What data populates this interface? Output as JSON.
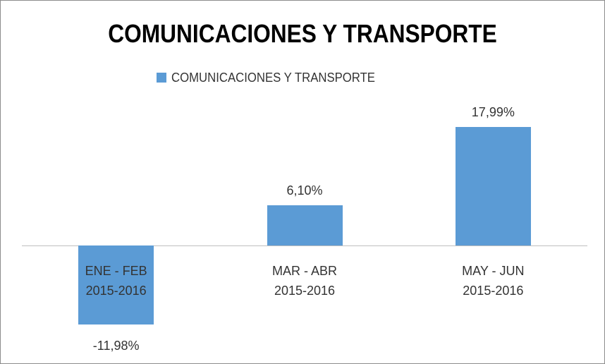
{
  "chart_data": {
    "type": "bar",
    "title": "COMUNICACIONES Y TRANSPORTE",
    "categories": [
      "ENE - FEB\n2015-2016",
      "MAR - ABR\n2015-2016",
      "MAY - JUN\n2015-2016"
    ],
    "series": [
      {
        "name": "COMUNICACIONES Y TRANSPORTE",
        "color": "#5b9bd5",
        "values": [
          -11.98,
          6.1,
          17.99
        ],
        "value_labels": [
          "-11,98%",
          "6,10%",
          "17,99%"
        ]
      }
    ],
    "legend": "top"
  }
}
